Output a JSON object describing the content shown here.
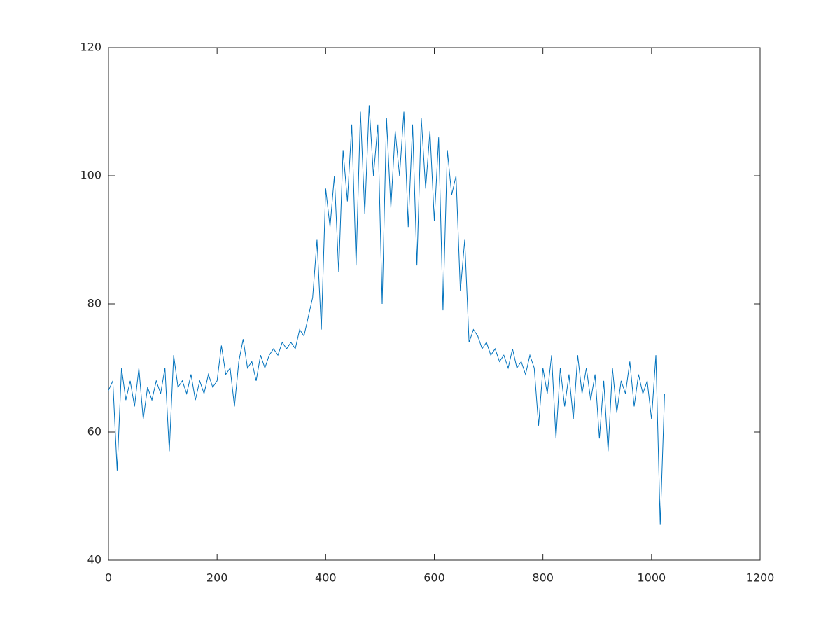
{
  "chart_data": {
    "type": "line",
    "x": [
      0,
      8,
      16,
      24,
      32,
      40,
      48,
      56,
      64,
      72,
      80,
      88,
      96,
      104,
      112,
      120,
      128,
      136,
      144,
      152,
      160,
      168,
      176,
      184,
      192,
      200,
      208,
      216,
      224,
      232,
      240,
      248,
      256,
      264,
      272,
      280,
      288,
      296,
      304,
      312,
      320,
      328,
      336,
      344,
      352,
      360,
      368,
      376,
      384,
      392,
      400,
      408,
      416,
      424,
      432,
      440,
      448,
      456,
      464,
      472,
      480,
      488,
      496,
      504,
      512,
      520,
      528,
      536,
      544,
      552,
      560,
      568,
      576,
      584,
      592,
      600,
      608,
      616,
      624,
      632,
      640,
      648,
      656,
      664,
      672,
      680,
      688,
      696,
      704,
      712,
      720,
      728,
      736,
      744,
      752,
      760,
      768,
      776,
      784,
      792,
      800,
      808,
      816,
      824,
      832,
      840,
      848,
      856,
      864,
      872,
      880,
      888,
      896,
      904,
      912,
      920,
      928,
      936,
      944,
      952,
      960,
      968,
      976,
      984,
      992,
      1000,
      1008,
      1016,
      1024
    ],
    "series": [
      {
        "color": "#0072bd",
        "values": [
          66.5,
          68,
          54,
          70,
          65,
          68,
          64,
          70,
          62,
          67,
          65,
          68,
          66,
          70,
          57,
          72,
          67,
          68,
          66,
          69,
          65,
          68,
          66,
          69,
          67,
          68,
          73.5,
          69,
          70,
          64,
          71,
          74.5,
          70,
          71,
          68,
          72,
          70,
          72,
          73,
          72,
          74,
          73,
          74,
          73,
          76,
          75,
          78,
          81,
          90,
          76,
          98,
          92,
          100,
          85,
          104,
          96,
          108,
          86,
          110,
          94,
          111,
          100,
          108,
          80,
          109,
          95,
          107,
          100,
          110,
          92,
          108,
          86,
          109,
          98,
          107,
          93,
          106,
          79,
          104,
          97,
          100,
          82,
          90,
          74,
          76,
          75,
          73,
          74,
          72,
          73,
          71,
          72,
          70,
          73,
          70,
          71,
          69,
          72,
          70,
          61,
          70,
          66,
          72,
          59,
          70,
          64,
          69,
          62,
          72,
          66,
          70,
          65,
          69,
          59,
          68,
          57,
          70,
          63,
          68,
          66,
          71,
          64,
          69,
          66,
          68,
          62,
          72,
          45.5,
          66
        ]
      }
    ],
    "xlim": [
      0,
      1200
    ],
    "ylim": [
      40,
      120
    ],
    "xticks": [
      0,
      200,
      400,
      600,
      800,
      1000,
      1200
    ],
    "yticks": [
      40,
      60,
      80,
      100,
      120
    ]
  }
}
